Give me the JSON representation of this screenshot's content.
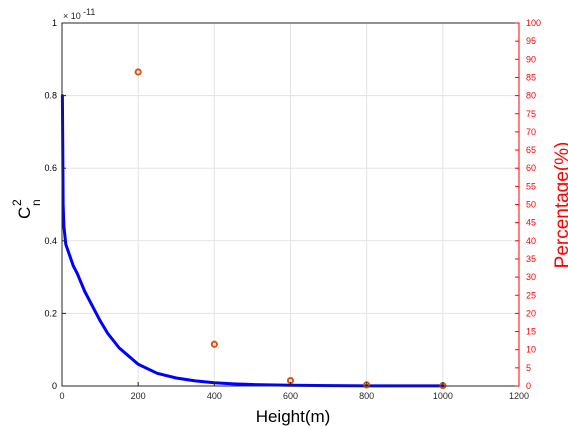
{
  "chart_data": {
    "type": "line",
    "xlabel": "Height(m)",
    "ylabel_left_main": "C",
    "ylabel_left_sup": "2",
    "ylabel_left_sub": "n",
    "ylabel_right": "Percentage(%)",
    "exponent_label": "× 10",
    "exponent_power": "-11",
    "xlim": [
      0,
      1200
    ],
    "ylim_left": [
      0,
      1
    ],
    "ylim_right": [
      0,
      100
    ],
    "x_ticks": [
      0,
      200,
      400,
      600,
      800,
      1000,
      1200
    ],
    "y_left_ticks": [
      0,
      0.2,
      0.4,
      0.6,
      0.8,
      1
    ],
    "y_left_tick_labels": [
      "0",
      "0.2",
      "0.4",
      "0.6",
      "0.8",
      "1"
    ],
    "y_right_ticks": [
      0,
      5,
      10,
      15,
      20,
      25,
      30,
      35,
      40,
      45,
      50,
      55,
      60,
      65,
      70,
      75,
      80,
      85,
      90,
      95,
      100
    ],
    "grid": true,
    "series": [
      {
        "color": "#0000ff",
        "axis": "left",
        "kind": "line",
        "x": [
          1,
          2,
          3,
          5,
          8,
          10,
          15,
          20,
          30,
          40,
          50,
          60,
          80,
          100,
          120,
          150,
          200,
          250,
          300,
          350,
          400,
          450,
          500,
          600,
          700,
          800,
          900,
          1000
        ],
        "y": [
          0.8,
          0.66,
          0.5,
          0.44,
          0.41,
          0.39,
          0.375,
          0.36,
          0.33,
          0.31,
          0.285,
          0.26,
          0.22,
          0.18,
          0.145,
          0.105,
          0.06,
          0.035,
          0.022,
          0.014,
          0.009,
          0.006,
          0.004,
          0.002,
          0.001,
          0.0005,
          0.0003,
          0.0002
        ]
      },
      {
        "color": "#d95319",
        "axis": "right",
        "kind": "scatter",
        "x": [
          200,
          400,
          600,
          800,
          1000
        ],
        "y": [
          86.5,
          11.5,
          1.5,
          0.3,
          0.1
        ]
      }
    ],
    "colors": {
      "left_axis": "#000000",
      "right_axis": "#ff0000",
      "grid": "#e3e3e3"
    }
  }
}
